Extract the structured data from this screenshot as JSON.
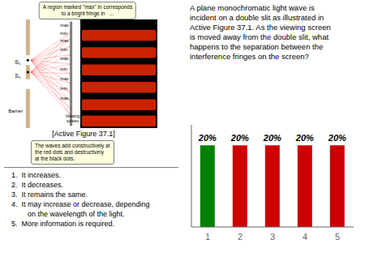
{
  "chart_data": {
    "type": "bar",
    "categories": [
      1,
      2,
      3,
      4,
      5
    ],
    "values": [
      20,
      20,
      20,
      20,
      20
    ],
    "value_labels": [
      "20%",
      "20%",
      "20%",
      "20%",
      "20%"
    ],
    "colors": [
      "#008000",
      "#cc0000",
      "#cc0000",
      "#cc0000",
      "#cc0000"
    ],
    "ylim": [
      0,
      25
    ],
    "tick_labels": "x",
    "data_labels": true,
    "annotations": [
      "A plane monochromatic light wave is\nincident on a double slit as illustrated in\nActive Figure 37.1. As the viewing screen\nis moved away from the double slit, what\nhappens to the separation between the\ninterference fringes on the screen?",
      "A region marked \"max\" in corresponds\nto a bright fringe in   ...",
      "[Active Figure 37.1]",
      "The waves add constructively at\nthe red dots and destructively\nat the black dots.",
      "1.  It increases.",
      "2.  It decreases.",
      "3.  It remains the same.",
      "4.  It may increase or decrease, depending\n        on the wavelength of the light.",
      "5.  More information is required.",
      "S₁",
      "S₂",
      "max",
      "min",
      "max",
      "min",
      "max",
      "min",
      "max",
      "min",
      "max",
      "Barrier",
      "Viewing\nscreen"
    ]
  }
}
